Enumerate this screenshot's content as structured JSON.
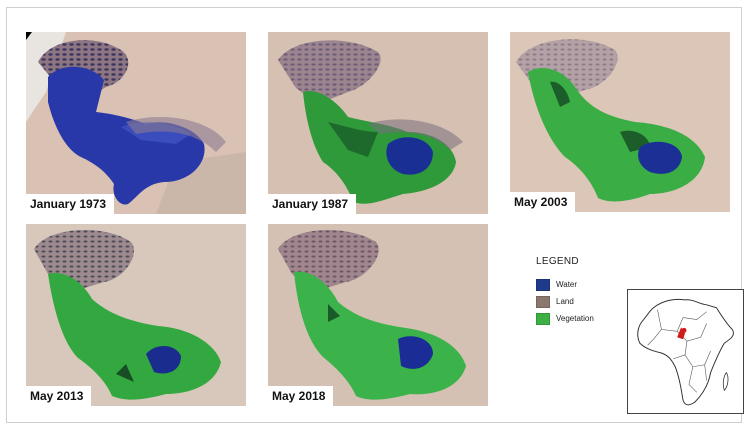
{
  "colors": {
    "water": "#1f3a8a",
    "land": "#c9a898",
    "vegetation": "#3cb043",
    "location_marker": "#d11a1a"
  },
  "images": [
    {
      "caption": "January 1973",
      "scene": "lake-chad-1973"
    },
    {
      "caption": "January 1987",
      "scene": "lake-chad-1987"
    },
    {
      "caption": "May 2003",
      "scene": "lake-chad-2003"
    },
    {
      "caption": "May 2013",
      "scene": "lake-chad-2013"
    },
    {
      "caption": "May 2018",
      "scene": "lake-chad-2018"
    }
  ],
  "legend": {
    "title": "LEGEND",
    "items": [
      {
        "label": "Water",
        "color": "#1f3a8a"
      },
      {
        "label": "Land",
        "color": "#8b776d"
      },
      {
        "label": "Vegetation",
        "color": "#3cb043"
      }
    ]
  },
  "locator_map": {
    "region": "Africa",
    "marked": "Lake Chad"
  }
}
